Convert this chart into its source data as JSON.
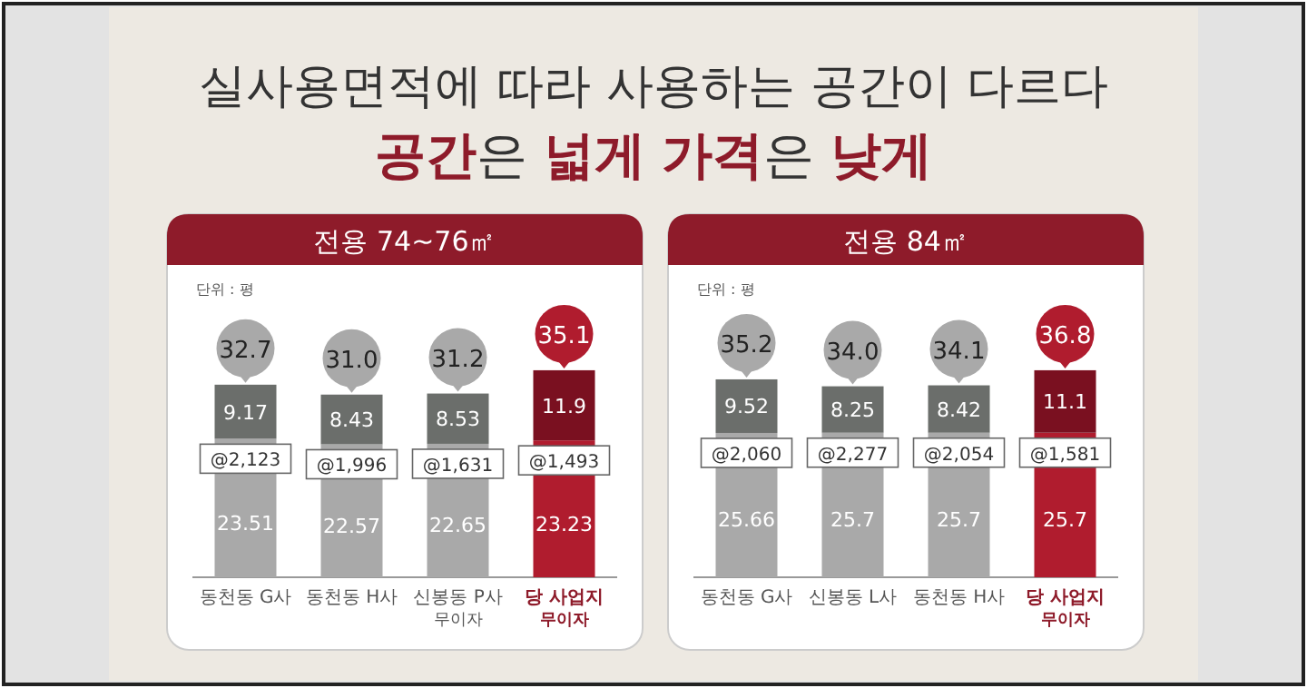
{
  "chart_data": [
    {
      "type": "other",
      "title": "실사용면적에 따라 사용하는 공간이 다르다",
      "subtitle": "**공간**은 **넓게** **가격**은 **낮게**"
    },
    {
      "type": "bar",
      "title": "전용 74~76㎡",
      "stacked": true,
      "data_labels": true,
      "tick_labels": "x",
      "categories": [
        "동천동 G사",
        "동천동 H사",
        "신봉동 P사\n무이자",
        "당 사업지\n무이자"
      ],
      "series": [
        {
          "colors": [
            "#a9a9a9",
            "#a9a9a9",
            "#a9a9a9",
            "#b01c2e"
          ],
          "values": [
            23.51,
            22.57,
            22.65,
            23.23
          ]
        },
        {
          "colors": [
            "#6b6e6b",
            "#6b6e6b",
            "#6b6e6b",
            "#7a1020"
          ],
          "values": [
            9.17,
            8.43,
            8.53,
            11.9
          ]
        }
      ],
      "totals": [
        "32.7",
        "31.0",
        "31.2",
        "35.1"
      ],
      "annotations": [
        "단위 : 평",
        "@2,123",
        "@1,996",
        "@1,631",
        "@1,493"
      ]
    },
    {
      "type": "bar",
      "title": "전용 84㎡",
      "stacked": true,
      "data_labels": true,
      "tick_labels": "x",
      "categories": [
        "동천동 G사",
        "신봉동 L사",
        "동천동 H사",
        "당 사업지\n무이자"
      ],
      "series": [
        {
          "colors": [
            "#a9a9a9",
            "#a9a9a9",
            "#a9a9a9",
            "#b01c2e"
          ],
          "values": [
            25.66,
            25.7,
            25.7,
            25.7
          ]
        },
        {
          "colors": [
            "#6b6e6b",
            "#6b6e6b",
            "#6b6e6b",
            "#7a1020"
          ],
          "values": [
            9.52,
            8.25,
            8.42,
            11.1
          ]
        }
      ],
      "totals": [
        "35.2",
        "34.0",
        "34.1",
        "36.8"
      ],
      "annotations": [
        "단위 : 평",
        "@2,060",
        "@2,277",
        "@2,054",
        "@1,581"
      ]
    }
  ]
}
